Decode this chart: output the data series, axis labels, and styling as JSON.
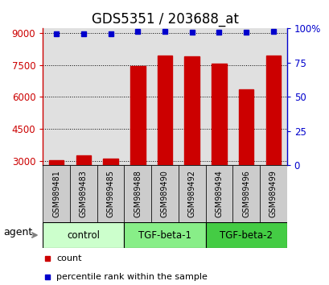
{
  "title": "GDS5351 / 203688_at",
  "samples": [
    "GSM989481",
    "GSM989483",
    "GSM989485",
    "GSM989488",
    "GSM989490",
    "GSM989492",
    "GSM989494",
    "GSM989496",
    "GSM989499"
  ],
  "count_values": [
    3050,
    3250,
    3100,
    7450,
    7950,
    7900,
    7550,
    6350,
    7950
  ],
  "percentile_values": [
    96,
    96,
    96,
    98,
    98,
    97,
    97,
    97,
    98
  ],
  "bar_color": "#cc0000",
  "dot_color": "#0000cc",
  "ylim_left": [
    2800,
    9200
  ],
  "ylim_right": [
    0,
    100
  ],
  "yticks_left": [
    3000,
    4500,
    6000,
    7500,
    9000
  ],
  "yticks_right": [
    0,
    25,
    50,
    75,
    100
  ],
  "groups": [
    {
      "label": "control",
      "n": 3,
      "color": "#ccffcc"
    },
    {
      "label": "TGF-beta-1",
      "n": 3,
      "color": "#88ee88"
    },
    {
      "label": "TGF-beta-2",
      "n": 3,
      "color": "#44cc44"
    }
  ],
  "agent_label": "agent",
  "legend_count_label": "count",
  "legend_percentile_label": "percentile rank within the sample",
  "bar_bottom": 2800,
  "title_fontsize": 12,
  "tick_fontsize": 8.5,
  "sample_label_fontsize": 7,
  "group_label_fontsize": 8.5
}
